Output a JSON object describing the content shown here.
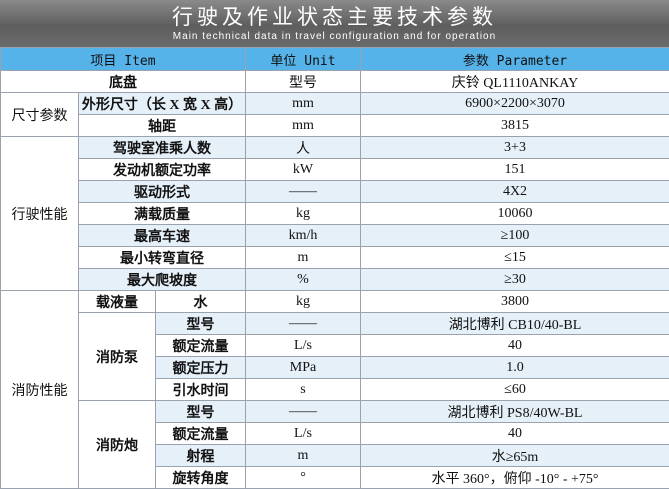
{
  "header": {
    "title": "行驶及作业状态主要技术参数",
    "subtitle": "Main technical data in travel configuration and for operation"
  },
  "table": {
    "columns": [
      "项目 Item",
      "单位 Unit",
      "参数 Parameter"
    ],
    "rows": [
      {
        "item": "底盘",
        "unit": "型号",
        "value": "庆铃 QL1110ANKAY"
      },
      {
        "group": "尺寸参数",
        "item": "外形尺寸（长 X 宽 X 高）",
        "unit": "mm",
        "value": "6900×2200×3070"
      },
      {
        "item": "轴距",
        "unit": "mm",
        "value": "3815"
      },
      {
        "group": "行驶性能",
        "item": "驾驶室准乘人数",
        "unit": "人",
        "value": "3+3"
      },
      {
        "item": "发动机额定功率",
        "unit": "kW",
        "value": "151"
      },
      {
        "item": "驱动形式",
        "unit": "——",
        "value": "4X2"
      },
      {
        "item": "满载质量",
        "unit": "kg",
        "value": "10060"
      },
      {
        "item": "最高车速",
        "unit": "km/h",
        "value": "≥100"
      },
      {
        "item": "最小转弯直径",
        "unit": "m",
        "value": "≤15"
      },
      {
        "item": "最大爬坡度",
        "unit": "%",
        "value": "≥30"
      },
      {
        "group": "消防性能",
        "subgroup": "载液量",
        "item": "水",
        "unit": "kg",
        "value": "3800"
      },
      {
        "subgroup": "消防泵",
        "item": "型号",
        "unit": "——",
        "value": "湖北博利 CB10/40-BL"
      },
      {
        "item": "额定流量",
        "unit": "L/s",
        "value": "40"
      },
      {
        "item": "额定压力",
        "unit": "MPa",
        "value": "1.0"
      },
      {
        "item": "引水时间",
        "unit": "s",
        "value": "≤60"
      },
      {
        "subgroup": "消防炮",
        "item": "型号",
        "unit": "——",
        "value": "湖北博利 PS8/40W-BL"
      },
      {
        "item": "额定流量",
        "unit": "L/s",
        "value": "40"
      },
      {
        "item": "射程",
        "unit": "m",
        "value": "水≥65m"
      },
      {
        "item": "旋转角度",
        "unit": "°",
        "value": "水平 360°，俯仰 -10° - +75°"
      }
    ]
  }
}
